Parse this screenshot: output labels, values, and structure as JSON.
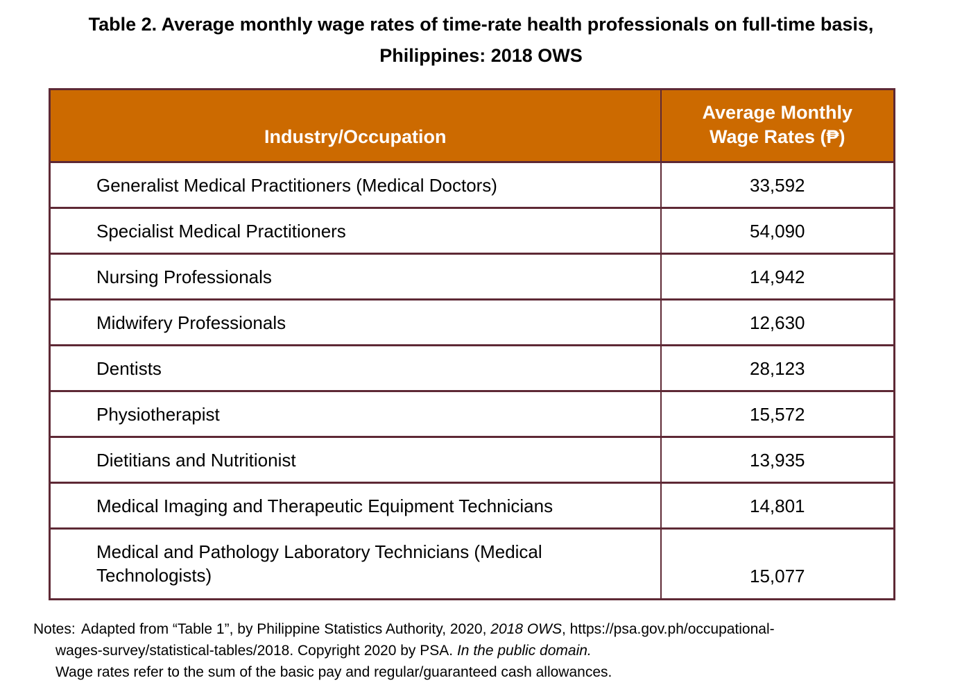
{
  "title": {
    "line1": "Table 2. Average monthly wage rates of time-rate health professionals on full-time basis,",
    "line2": "Philippines: 2018 OWS"
  },
  "table": {
    "header": {
      "col1": "Industry/Occupation",
      "col2_line1": "Average Monthly",
      "col2_line2": "Wage Rates (₱)"
    },
    "rows": [
      {
        "occupation": "Generalist Medical Practitioners (Medical Doctors)",
        "wage": "33,592"
      },
      {
        "occupation": "Specialist Medical Practitioners",
        "wage": "54,090"
      },
      {
        "occupation": "Nursing Professionals",
        "wage": "14,942"
      },
      {
        "occupation": "Midwifery Professionals",
        "wage": "12,630"
      },
      {
        "occupation": "Dentists",
        "wage": "28,123"
      },
      {
        "occupation": "Physiotherapist",
        "wage": "15,572"
      },
      {
        "occupation": "Dietitians and Nutritionist",
        "wage": "13,935"
      },
      {
        "occupation": "Medical Imaging and Therapeutic Equipment Technicians",
        "wage": "14,801"
      },
      {
        "occupation": "Medical and Pathology Laboratory Technicians (Medical Technologists)",
        "wage": "15,077"
      }
    ]
  },
  "notes": {
    "label": "Notes:",
    "line1_part1": "Adapted from “Table 1”, by Philippine Statistics Authority, 2020, ",
    "line1_italic": "2018 OWS",
    "line1_part2": ", https://psa.gov.ph/occupational-",
    "line2_part1": "wages-survey/statistical-tables/2018. Copyright 2020 by PSA. ",
    "line2_italic": "In the public domain.",
    "line3": "Wage rates refer to the sum of the basic pay and regular/guaranteed cash allowances."
  },
  "colors": {
    "header_bg": "#CC6A00",
    "border_color": "#5E2935",
    "header_text": "#FFFFFF",
    "body_text": "#000000",
    "page_bg": "#FFFFFF"
  }
}
